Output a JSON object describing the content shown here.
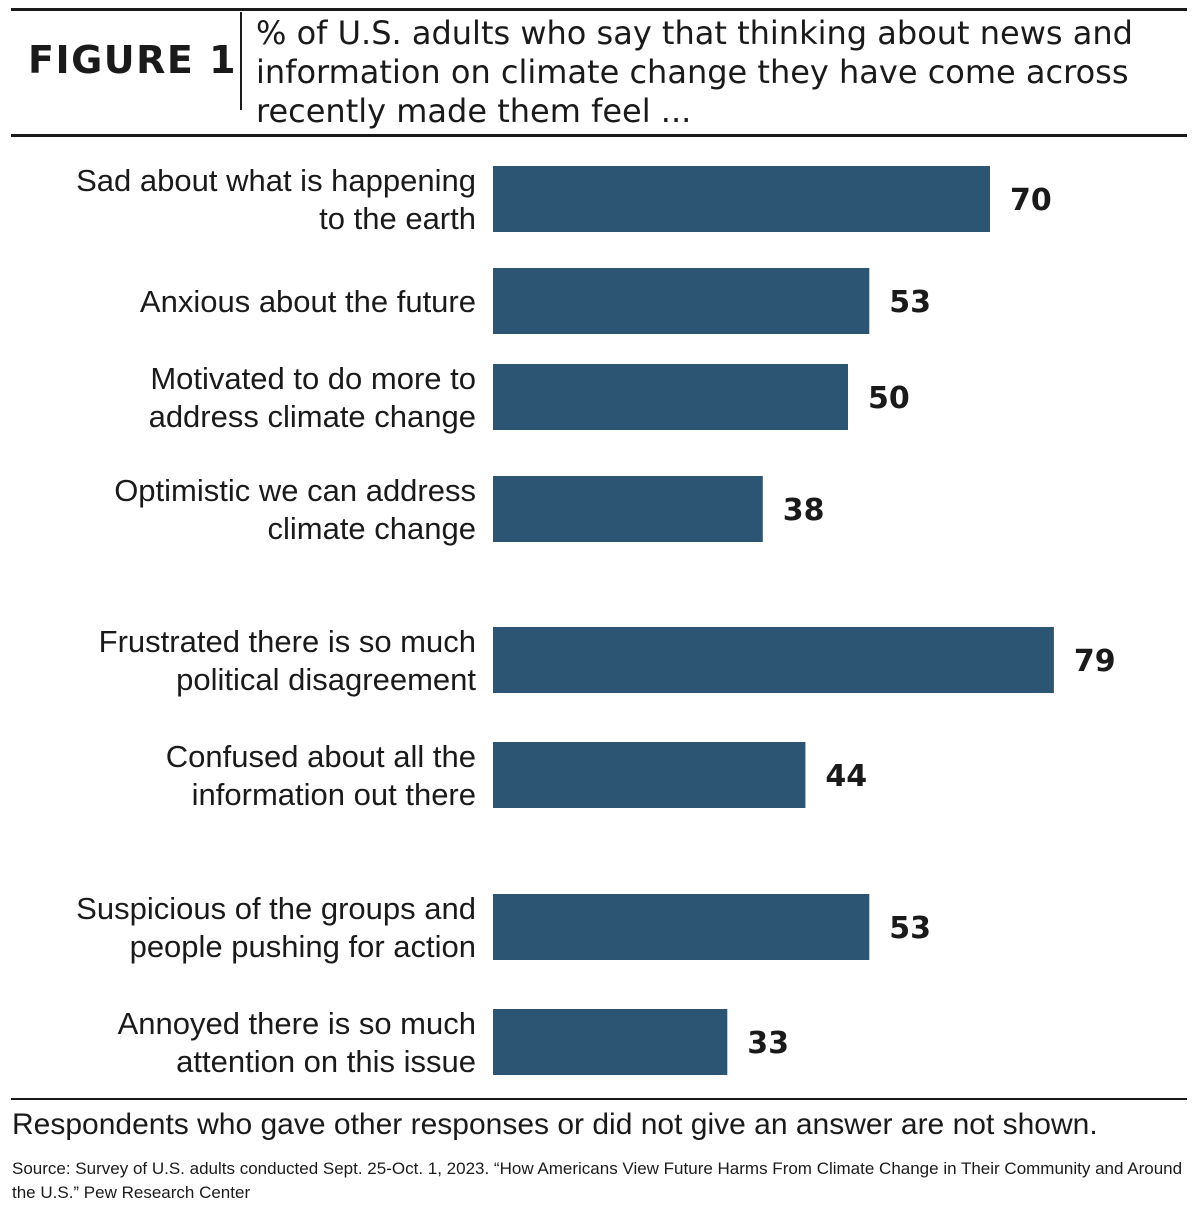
{
  "figure_label": "FIGURE 1",
  "title": "% of U.S. adults who say that thinking about news and information on climate change they have come across recently made them feel ...",
  "note": "Respondents who gave other responses or did not give an answer are not shown.",
  "source": "Source: Survey of U.S. adults conducted Sept. 25-Oct. 1, 2023. “How Americans View Future Harms From Climate Change in Their Community and Around the U.S.” Pew Research Center",
  "colors": {
    "bar": "#2b5572",
    "text": "#1a1a1a"
  },
  "chart_data": {
    "type": "bar",
    "orientation": "horizontal",
    "categories": [
      [
        "Sad about what is happening",
        "to the earth"
      ],
      [
        "Anxious about the future"
      ],
      [
        "Motivated to do more to",
        "address climate change"
      ],
      [
        "Optimistic we can address",
        "climate change"
      ],
      [
        "Frustrated there is so much",
        "political disagreement"
      ],
      [
        "Confused about all the",
        "information out there"
      ],
      [
        "Suspicious of the groups and",
        "people pushing for action"
      ],
      [
        "Annoyed there is so much",
        "attention on this issue"
      ]
    ],
    "values": [
      70,
      53,
      50,
      38,
      79,
      44,
      53,
      33
    ],
    "value_labels": [
      "70",
      "53",
      "50",
      "38",
      "79",
      "44",
      "53",
      "33"
    ],
    "groups": [
      [
        0,
        1,
        2,
        3
      ],
      [
        4,
        5
      ],
      [
        6,
        7
      ]
    ],
    "xlim": [
      0,
      100
    ],
    "grid": false,
    "axes_shown": false
  }
}
